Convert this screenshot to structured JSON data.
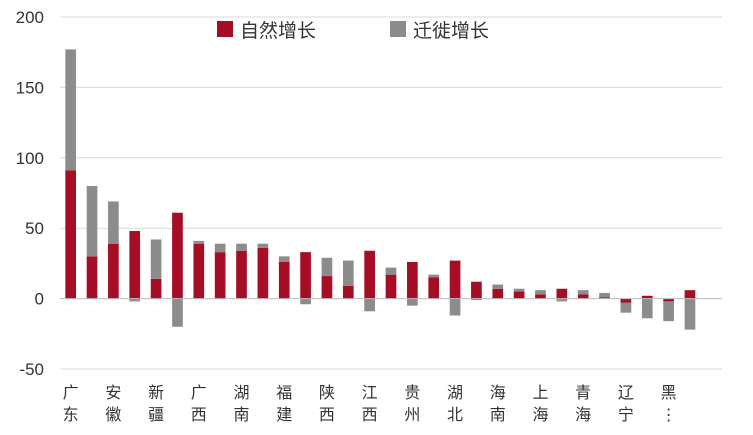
{
  "chart_data": {
    "type": "bar",
    "stacked": true,
    "title": "",
    "xlabel": "",
    "ylabel": "",
    "ylim": [
      -50,
      200
    ],
    "yticks": [
      -50,
      0,
      50,
      100,
      150,
      200
    ],
    "grid": true,
    "legend_position": "top-center",
    "categories": [
      "广东",
      "",
      "安徽",
      "",
      "新疆",
      "",
      "广西",
      "",
      "湖南",
      "",
      "福建",
      "",
      "陕西",
      "",
      "江西",
      "",
      "贵州",
      "",
      "湖北",
      "",
      "海南",
      "",
      "上海",
      "",
      "青海",
      "",
      "辽宁",
      "",
      "黑龙江",
      "",
      ""
    ],
    "series": [
      {
        "name": "自然增长",
        "color": "#A50E24",
        "values": [
          91,
          30,
          39,
          48,
          14,
          61,
          39,
          33,
          34,
          36,
          26,
          33,
          16,
          9,
          34,
          17,
          26,
          15,
          27,
          12,
          7,
          5,
          3,
          7,
          3,
          1,
          -3,
          2,
          -2,
          6,
          0
        ]
      },
      {
        "name": "迁徙增长",
        "color": "#8C8C8C",
        "values": [
          86,
          50,
          30,
          -2,
          28,
          -20,
          2,
          6,
          5,
          3,
          4,
          -4,
          13,
          18,
          -9,
          5,
          -5,
          2,
          -12,
          -1,
          3,
          2,
          3,
          -2,
          3,
          3,
          -7,
          -14,
          -14,
          -22,
          0
        ]
      }
    ]
  }
}
